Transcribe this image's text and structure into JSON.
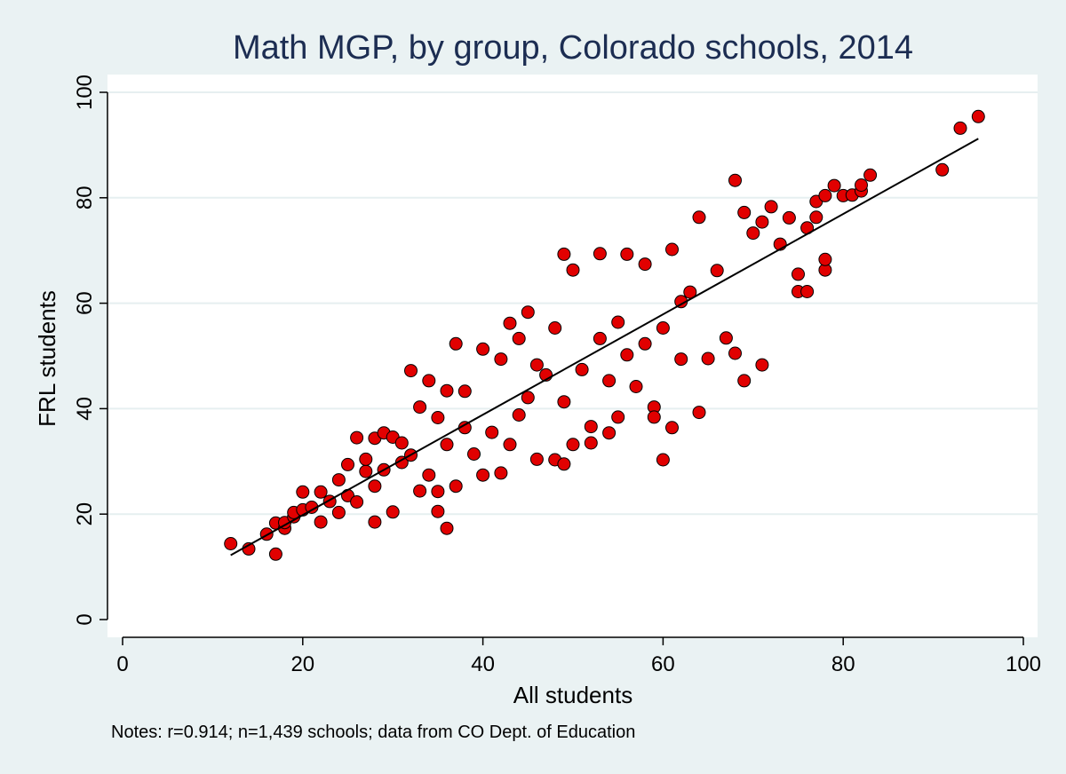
{
  "chart_data": {
    "type": "scatter",
    "title": "Math MGP, by group, Colorado schools, 2014",
    "xlabel": "All students",
    "ylabel": "FRL students",
    "note": "Notes: r=0.914; n=1,439 schools; data from CO Dept. of Education",
    "xlim": [
      0,
      100
    ],
    "ylim": [
      0,
      100
    ],
    "xticks": [
      "0",
      "20",
      "40",
      "60",
      "80",
      "100"
    ],
    "yticks": [
      "0",
      "20",
      "40",
      "60",
      "80",
      "100"
    ],
    "grid": "horizontal",
    "legend": "none",
    "marker_color": "#e10000",
    "marker_edge_color": "#000000",
    "fit_line": {
      "x": [
        12,
        95
      ],
      "y": [
        12.2,
        91.2
      ]
    },
    "series": [
      {
        "values": [
          [
            12,
            14.4
          ],
          [
            14,
            13.4
          ],
          [
            16,
            16.2
          ],
          [
            17,
            12.4
          ],
          [
            17,
            18.3
          ],
          [
            18,
            17.3
          ],
          [
            18,
            18.4
          ],
          [
            19,
            19.5
          ],
          [
            19,
            20.3
          ],
          [
            20,
            24.2
          ],
          [
            20,
            20.8
          ],
          [
            21,
            21.3
          ],
          [
            22,
            18.5
          ],
          [
            22,
            24.2
          ],
          [
            23,
            22.4
          ],
          [
            24,
            20.3
          ],
          [
            24,
            26.5
          ],
          [
            25,
            29.4
          ],
          [
            25,
            23.5
          ],
          [
            26,
            34.5
          ],
          [
            26,
            22.3
          ],
          [
            27,
            28.1
          ],
          [
            27,
            30.4
          ],
          [
            28,
            18.5
          ],
          [
            28,
            34.4
          ],
          [
            28,
            25.3
          ],
          [
            29,
            35.4
          ],
          [
            29,
            28.4
          ],
          [
            30,
            20.4
          ],
          [
            30,
            34.6
          ],
          [
            31,
            29.8
          ],
          [
            31,
            33.5
          ],
          [
            32,
            47.2
          ],
          [
            32,
            31.2
          ],
          [
            33,
            24.4
          ],
          [
            33,
            40.3
          ],
          [
            34,
            45.3
          ],
          [
            34,
            27.4
          ],
          [
            35,
            20.5
          ],
          [
            35,
            24.3
          ],
          [
            35,
            38.3
          ],
          [
            36,
            17.3
          ],
          [
            36,
            43.4
          ],
          [
            36,
            33.2
          ],
          [
            37,
            52.3
          ],
          [
            37,
            25.3
          ],
          [
            38,
            36.4
          ],
          [
            38,
            43.3
          ],
          [
            39,
            31.4
          ],
          [
            40,
            27.4
          ],
          [
            40,
            51.3
          ],
          [
            41,
            35.5
          ],
          [
            42,
            27.8
          ],
          [
            42,
            49.4
          ],
          [
            43,
            56.2
          ],
          [
            43,
            33.2
          ],
          [
            44,
            53.3
          ],
          [
            44,
            38.8
          ],
          [
            45,
            58.3
          ],
          [
            45,
            42.1
          ],
          [
            46,
            30.4
          ],
          [
            46,
            48.3
          ],
          [
            47,
            46.4
          ],
          [
            48,
            30.3
          ],
          [
            48,
            55.3
          ],
          [
            49,
            69.3
          ],
          [
            49,
            29.5
          ],
          [
            49,
            41.3
          ],
          [
            50,
            66.3
          ],
          [
            50,
            33.2
          ],
          [
            51,
            47.4
          ],
          [
            52,
            36.6
          ],
          [
            52,
            33.5
          ],
          [
            53,
            69.4
          ],
          [
            53,
            53.3
          ],
          [
            54,
            35.4
          ],
          [
            54,
            45.3
          ],
          [
            55,
            38.4
          ],
          [
            55,
            56.4
          ],
          [
            56,
            69.3
          ],
          [
            56,
            50.2
          ],
          [
            57,
            44.2
          ],
          [
            58,
            67.4
          ],
          [
            58,
            52.3
          ],
          [
            59,
            40.3
          ],
          [
            59,
            38.4
          ],
          [
            60,
            30.3
          ],
          [
            60,
            55.3
          ],
          [
            61,
            36.4
          ],
          [
            61,
            70.2
          ],
          [
            62,
            49.4
          ],
          [
            62,
            60.3
          ],
          [
            63,
            62.1
          ],
          [
            64,
            76.3
          ],
          [
            64,
            39.3
          ],
          [
            65,
            49.5
          ],
          [
            66,
            66.2
          ],
          [
            67,
            53.4
          ],
          [
            68,
            83.3
          ],
          [
            68,
            50.5
          ],
          [
            69,
            45.3
          ],
          [
            69,
            77.2
          ],
          [
            70,
            73.3
          ],
          [
            71,
            48.3
          ],
          [
            71,
            75.4
          ],
          [
            72,
            78.3
          ],
          [
            73,
            71.2
          ],
          [
            74,
            76.2
          ],
          [
            75,
            62.2
          ],
          [
            75,
            65.5
          ],
          [
            76,
            62.2
          ],
          [
            76,
            74.3
          ],
          [
            77,
            79.3
          ],
          [
            77,
            76.3
          ],
          [
            78,
            66.3
          ],
          [
            78,
            68.3
          ],
          [
            78,
            80.4
          ],
          [
            79,
            82.3
          ],
          [
            80,
            80.4
          ],
          [
            81,
            80.5
          ],
          [
            82,
            81.3
          ],
          [
            82,
            82.4
          ],
          [
            83,
            84.3
          ],
          [
            91,
            85.3
          ],
          [
            93,
            93.2
          ],
          [
            95,
            95.4
          ]
        ]
      }
    ]
  }
}
